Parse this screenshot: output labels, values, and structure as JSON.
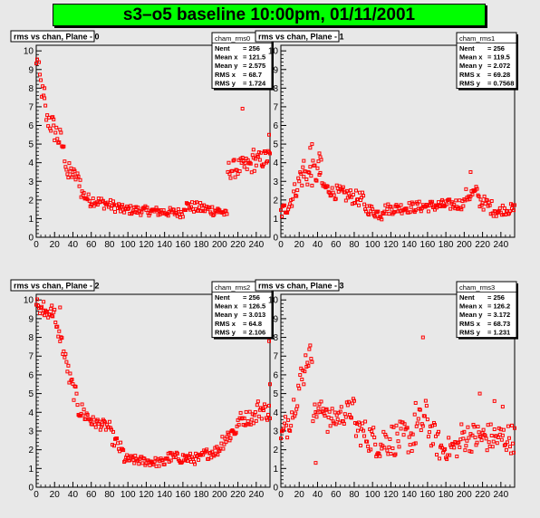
{
  "banner": {
    "title": "s3–o5 baseline 10:00pm, 01/11/2001",
    "color": "#00ff00"
  },
  "colors": {
    "marker": "#ff0000",
    "pad_bg": "#e8e8e8",
    "frame": "#000000"
  },
  "chart_data": [
    {
      "type": "scatter",
      "title": "rms vs chan, Plane - 0",
      "stats": {
        "name": "cham_rms0",
        "rows": [
          [
            "Nent",
            "= 256"
          ],
          [
            "Mean x",
            "= 121.5"
          ],
          [
            "Mean y",
            "= 2.575"
          ],
          [
            "RMS x",
            "= 68.7"
          ],
          [
            "RMS y",
            "= 1.724"
          ]
        ]
      },
      "xlim": [
        0,
        255
      ],
      "ylim": [
        0,
        10.3
      ],
      "xticks": [
        0,
        20,
        40,
        60,
        80,
        100,
        120,
        140,
        160,
        180,
        200,
        220,
        240
      ],
      "yticks": [
        0,
        1,
        2,
        3,
        4,
        5,
        6,
        7,
        8,
        9,
        10
      ],
      "grid": false,
      "segments": [
        [
          0,
          2,
          9.2,
          10.2,
          0.4
        ],
        [
          3,
          12,
          8.8,
          6.2,
          0.6
        ],
        [
          13,
          28,
          6.4,
          5.0,
          0.7
        ],
        [
          29,
          35,
          4.9,
          3.2,
          0.4
        ],
        [
          36,
          48,
          3.6,
          3.0,
          0.4
        ],
        [
          49,
          60,
          2.4,
          1.9,
          0.3
        ],
        [
          61,
          90,
          2.0,
          1.6,
          0.3
        ],
        [
          91,
          160,
          1.5,
          1.3,
          0.25
        ],
        [
          161,
          200,
          1.7,
          1.4,
          0.3
        ],
        [
          201,
          208,
          1.4,
          1.2,
          0.2
        ],
        [
          209,
          235,
          3.6,
          3.9,
          0.5
        ],
        [
          236,
          255,
          4.0,
          4.3,
          0.5
        ]
      ],
      "outliers": [
        [
          225,
          6.9
        ],
        [
          254,
          5.5
        ],
        [
          237,
          4.7
        ],
        [
          250,
          4.6
        ],
        [
          9,
          8.0
        ],
        [
          19,
          6.0
        ]
      ]
    },
    {
      "type": "scatter",
      "title": "rms vs chan, Plane - 1",
      "stats": {
        "name": "cham_rms1",
        "rows": [
          [
            "Nent",
            "= 256"
          ],
          [
            "Mean x",
            "= 119.5"
          ],
          [
            "Mean y",
            "= 2.072"
          ],
          [
            "RMS x",
            "= 69.28"
          ],
          [
            "RMS y",
            "= 0.7568"
          ]
        ]
      },
      "xlim": [
        0,
        255
      ],
      "ylim": [
        0,
        10.3
      ],
      "xticks": [
        0,
        20,
        40,
        60,
        80,
        100,
        120,
        140,
        160,
        180,
        200,
        220,
        240
      ],
      "yticks": [
        0,
        1,
        2,
        3,
        4,
        5,
        6,
        7,
        8,
        9,
        10
      ],
      "grid": false,
      "segments": [
        [
          0,
          10,
          1.3,
          1.8,
          0.4
        ],
        [
          11,
          20,
          2.0,
          3.0,
          0.5
        ],
        [
          21,
          44,
          3.3,
          3.5,
          0.7
        ],
        [
          45,
          60,
          2.8,
          2.3,
          0.3
        ],
        [
          61,
          90,
          2.4,
          2.0,
          0.4
        ],
        [
          91,
          110,
          1.6,
          1.2,
          0.3
        ],
        [
          111,
          200,
          1.5,
          1.8,
          0.3
        ],
        [
          201,
          215,
          2.2,
          2.4,
          0.4
        ],
        [
          216,
          240,
          2.0,
          1.3,
          0.4
        ],
        [
          241,
          255,
          1.5,
          1.5,
          0.3
        ]
      ],
      "outliers": [
        [
          32,
          4.8
        ],
        [
          34,
          5.0
        ],
        [
          42,
          4.5
        ],
        [
          43,
          4.3
        ],
        [
          207,
          3.5
        ],
        [
          25,
          4.1
        ]
      ]
    },
    {
      "type": "scatter",
      "title": "rms vs chan, Plane - 2",
      "stats": {
        "name": "cham_rms2",
        "rows": [
          [
            "Nent",
            "= 256"
          ],
          [
            "Mean x",
            "= 126.5"
          ],
          [
            "Mean y",
            "= 3.013"
          ],
          [
            "RMS x",
            "= 64.8"
          ],
          [
            "RMS y",
            "= 2.106"
          ]
        ]
      },
      "xlim": [
        0,
        255
      ],
      "ylim": [
        0,
        10.3
      ],
      "xticks": [
        0,
        20,
        40,
        60,
        80,
        100,
        120,
        140,
        160,
        180,
        200,
        220,
        240
      ],
      "yticks": [
        0,
        1,
        2,
        3,
        4,
        5,
        6,
        7,
        8,
        9,
        10
      ],
      "grid": false,
      "segments": [
        [
          0,
          3,
          10.0,
          9.6,
          0.3
        ],
        [
          4,
          20,
          9.4,
          9.3,
          0.3
        ],
        [
          21,
          28,
          8.6,
          7.8,
          0.3
        ],
        [
          29,
          35,
          7.4,
          6.2,
          0.4
        ],
        [
          36,
          45,
          5.8,
          4.6,
          0.5
        ],
        [
          46,
          60,
          4.2,
          3.6,
          0.5
        ],
        [
          61,
          80,
          3.5,
          3.2,
          0.3
        ],
        [
          81,
          95,
          2.8,
          1.8,
          0.4
        ],
        [
          96,
          140,
          1.5,
          1.3,
          0.25
        ],
        [
          141,
          180,
          1.6,
          1.5,
          0.3
        ],
        [
          181,
          200,
          1.7,
          2.0,
          0.3
        ],
        [
          201,
          220,
          2.4,
          3.2,
          0.5
        ],
        [
          221,
          240,
          3.6,
          3.8,
          0.4
        ],
        [
          241,
          255,
          4.2,
          4.0,
          0.5
        ]
      ],
      "outliers": [
        [
          254,
          7.8
        ],
        [
          255,
          5.5
        ],
        [
          26,
          9.6
        ],
        [
          17,
          9.7
        ],
        [
          8,
          9.9
        ]
      ]
    },
    {
      "type": "scatter",
      "title": "rms vs chan, Plane - 3",
      "stats": {
        "name": "cham_rms3",
        "rows": [
          [
            "Nent",
            "= 256"
          ],
          [
            "Mean x",
            "= 126.2"
          ],
          [
            "Mean y",
            "= 3.172"
          ],
          [
            "RMS x",
            "= 68.73"
          ],
          [
            "RMS y",
            "= 1.231"
          ]
        ]
      },
      "xlim": [
        0,
        255
      ],
      "ylim": [
        0,
        10.3
      ],
      "xticks": [
        0,
        20,
        40,
        60,
        80,
        100,
        120,
        140,
        160,
        180,
        200,
        220,
        240
      ],
      "yticks": [
        0,
        1,
        2,
        3,
        4,
        5,
        6,
        7,
        8,
        9,
        10
      ],
      "grid": false,
      "segments": [
        [
          0,
          14,
          2.5,
          4.3,
          0.8
        ],
        [
          15,
          25,
          4.8,
          6.0,
          1.0
        ],
        [
          26,
          34,
          6.7,
          7.2,
          0.6
        ],
        [
          35,
          50,
          4.0,
          4.2,
          0.5
        ],
        [
          51,
          80,
          3.5,
          4.2,
          0.6
        ],
        [
          81,
          110,
          3.2,
          2.2,
          0.8
        ],
        [
          111,
          145,
          2.5,
          2.7,
          0.9
        ],
        [
          146,
          160,
          3.0,
          3.8,
          1.0
        ],
        [
          161,
          175,
          3.2,
          2.0,
          0.8
        ],
        [
          176,
          195,
          2.0,
          2.2,
          0.6
        ],
        [
          196,
          255,
          2.7,
          2.6,
          0.8
        ]
      ],
      "outliers": [
        [
          38,
          1.3
        ],
        [
          155,
          8.0
        ],
        [
          147,
          4.5
        ],
        [
          217,
          5.0
        ],
        [
          233,
          4.6
        ],
        [
          242,
          4.3
        ]
      ]
    }
  ]
}
